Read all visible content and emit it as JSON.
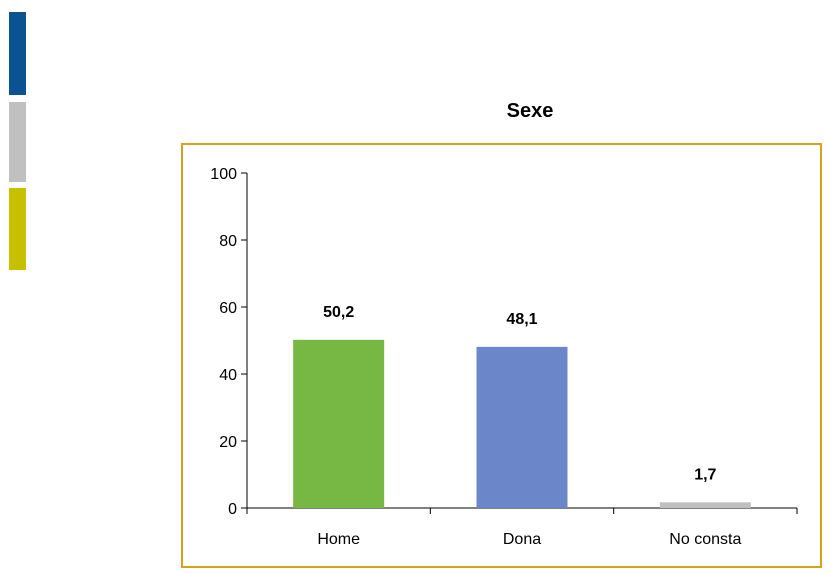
{
  "side_accents": [
    "#0a5291",
    "#c0c0c0",
    "#c7c000"
  ],
  "frame_color": "#d4a21c",
  "chart_data": {
    "type": "bar",
    "title": "Sexe",
    "categories": [
      "Home",
      "Dona",
      "No consta"
    ],
    "values": [
      50.2,
      48.1,
      1.7
    ],
    "data_labels": [
      "50,2",
      "48,1",
      "1,7"
    ],
    "colors": [
      "#76b843",
      "#6b87c9",
      "#c0c0c0"
    ],
    "ylim": [
      0,
      100
    ],
    "yticks": [
      0,
      20,
      40,
      60,
      80,
      100
    ],
    "xlabel": "",
    "ylabel": "",
    "grid": false
  }
}
